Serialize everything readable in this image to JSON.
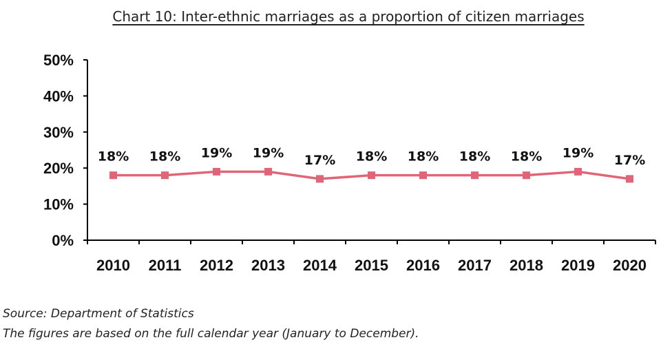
{
  "chart_data": {
    "type": "line",
    "title": "Chart 10: Inter-ethnic marriages as a proportion of citizen marriages",
    "categories": [
      "2010",
      "2011",
      "2012",
      "2013",
      "2014",
      "2015",
      "2016",
      "2017",
      "2018",
      "2019",
      "2020"
    ],
    "values": [
      18,
      18,
      19,
      19,
      17,
      18,
      18,
      18,
      18,
      19,
      17
    ],
    "data_labels": [
      "18%",
      "18%",
      "19%",
      "19%",
      "17%",
      "18%",
      "18%",
      "18%",
      "18%",
      "19%",
      "17%"
    ],
    "yticks": [
      "0%",
      "10%",
      "20%",
      "30%",
      "40%",
      "50%"
    ],
    "ylim": [
      0,
      50
    ],
    "xlabel": "",
    "ylabel": "",
    "grid": false,
    "legend": "none",
    "line_color": "#e06577",
    "marker": "square"
  },
  "footnotes": {
    "source": "Source: Department of Statistics",
    "note": "The figures are based on the full calendar year (January to December)."
  }
}
